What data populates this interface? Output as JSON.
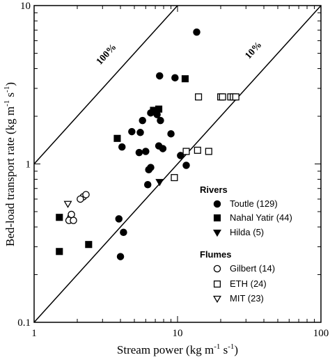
{
  "chart_data": {
    "type": "scatter",
    "xscale": "log",
    "yscale": "log",
    "xlim": [
      1,
      100
    ],
    "ylim": [
      0.1,
      10
    ],
    "xlabel": "Stream power (kg m",
    "xlabel_exp1": "-1",
    "xlabel_mid": " s",
    "xlabel_exp2": "-1",
    "xlabel_end": ")",
    "ylabel": "Bed-load transport rate (kg m",
    "ylabel_exp1": "-1",
    "ylabel_mid": " s",
    "ylabel_exp2": "-1",
    "ylabel_end": ")",
    "xticks": [
      {
        "value": 1,
        "label": "1"
      },
      {
        "value": 10,
        "label": "10"
      },
      {
        "value": 100,
        "label": "100"
      }
    ],
    "yticks": [
      {
        "value": 0.1,
        "label": "0.1"
      },
      {
        "value": 1,
        "label": "1"
      },
      {
        "value": 10,
        "label": "10"
      }
    ],
    "reference_lines": [
      {
        "label": "100%",
        "fraction": 1.0
      },
      {
        "label": "10%",
        "fraction": 0.1
      }
    ],
    "legend_groups": [
      {
        "title": "Rivers",
        "series_index": [
          0,
          1,
          2
        ]
      },
      {
        "title": "Flumes",
        "series_index": [
          3,
          4,
          5
        ]
      }
    ],
    "series": [
      {
        "name": "Toutle (129)",
        "marker": "circle",
        "filled": true,
        "points": [
          [
            13.6,
            6.8
          ],
          [
            7.5,
            3.6
          ],
          [
            9.6,
            3.5
          ],
          [
            6.5,
            2.1
          ],
          [
            7.2,
            2.05
          ],
          [
            7.6,
            1.88
          ],
          [
            5.7,
            1.88
          ],
          [
            4.8,
            1.6
          ],
          [
            5.5,
            1.58
          ],
          [
            9.0,
            1.55
          ],
          [
            4.1,
            1.28
          ],
          [
            7.4,
            1.3
          ],
          [
            7.9,
            1.25
          ],
          [
            6.0,
            1.2
          ],
          [
            5.4,
            1.18
          ],
          [
            10.5,
            1.13
          ],
          [
            6.5,
            0.95
          ],
          [
            6.3,
            0.92
          ],
          [
            11.5,
            0.98
          ],
          [
            6.2,
            0.74
          ],
          [
            3.9,
            0.45
          ],
          [
            4.2,
            0.37
          ],
          [
            4.0,
            0.26
          ]
        ]
      },
      {
        "name": "Nahal Yatir (44)",
        "marker": "square",
        "filled": true,
        "points": [
          [
            7.4,
            2.22
          ],
          [
            6.8,
            2.18
          ],
          [
            11.3,
            3.45
          ],
          [
            3.8,
            1.45
          ],
          [
            1.5,
            0.46
          ],
          [
            1.5,
            0.28
          ],
          [
            2.4,
            0.31
          ]
        ]
      },
      {
        "name": "Hilda (5)",
        "marker": "triangle-down",
        "filled": true,
        "points": [
          [
            7.5,
            0.77
          ]
        ]
      },
      {
        "name": "Gilbert (14)",
        "marker": "circle",
        "filled": false,
        "points": [
          [
            2.2,
            0.62
          ],
          [
            2.1,
            0.6
          ],
          [
            2.3,
            0.64
          ],
          [
            1.8,
            0.46
          ],
          [
            1.75,
            0.44
          ],
          [
            1.88,
            0.44
          ],
          [
            1.82,
            0.48
          ]
        ]
      },
      {
        "name": "ETH (24)",
        "marker": "square",
        "filled": false,
        "points": [
          [
            14.0,
            2.65
          ],
          [
            20.0,
            2.65
          ],
          [
            20.6,
            2.65
          ],
          [
            23.5,
            2.65
          ],
          [
            24.5,
            2.65
          ],
          [
            25.5,
            2.65
          ],
          [
            11.5,
            1.2
          ],
          [
            13.8,
            1.22
          ],
          [
            16.5,
            1.2
          ],
          [
            9.5,
            0.82
          ]
        ]
      },
      {
        "name": "MIT (23)",
        "marker": "triangle-down",
        "filled": false,
        "points": [
          [
            1.72,
            0.56
          ]
        ]
      }
    ]
  }
}
